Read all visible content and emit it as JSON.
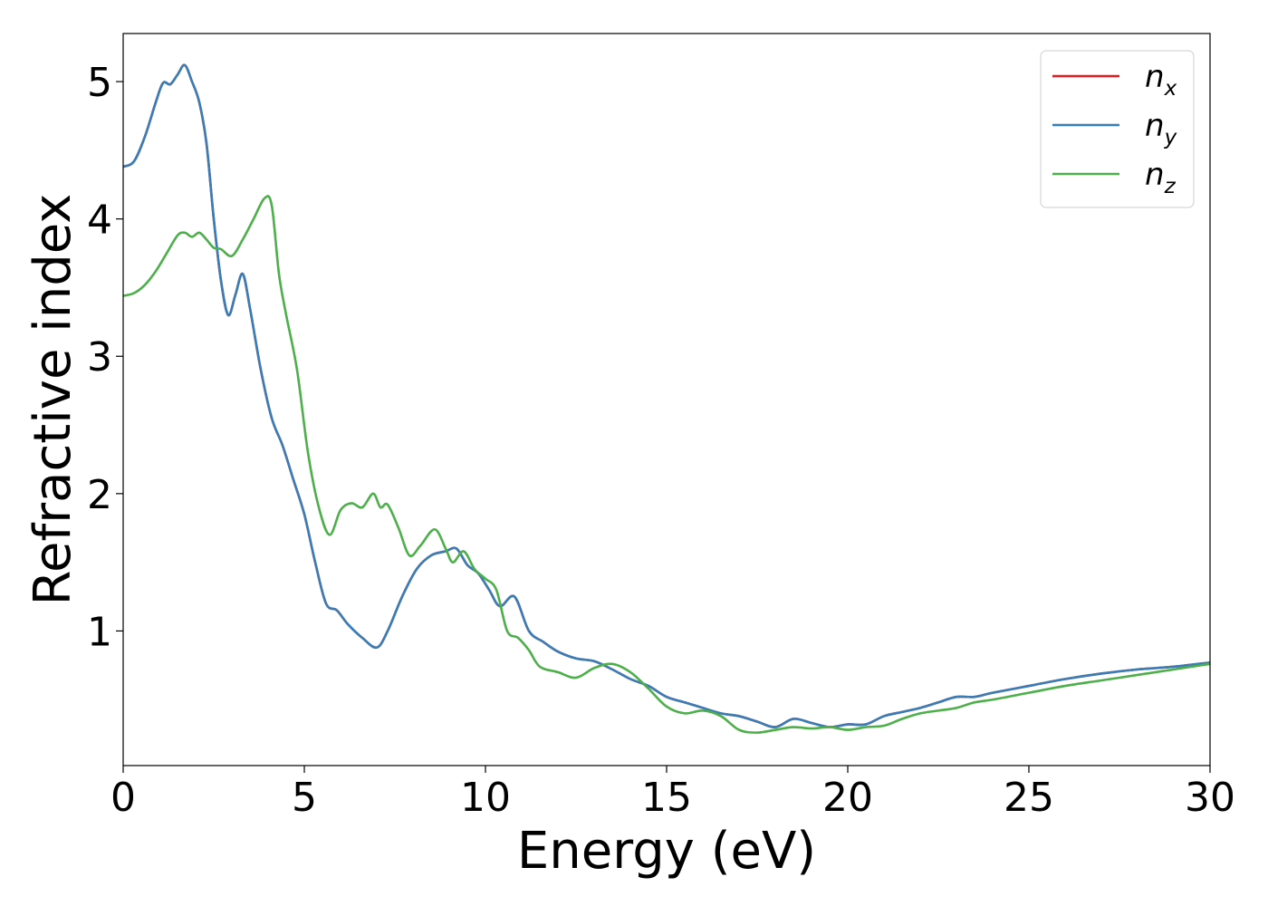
{
  "chart_data": {
    "type": "line",
    "xlabel": "Energy (eV)",
    "ylabel": "Refractive index",
    "xlim": [
      0,
      30
    ],
    "ylim": [
      0.02,
      5.35
    ],
    "xticks": [
      0,
      5,
      10,
      15,
      20,
      25,
      30
    ],
    "yticks": [
      1,
      2,
      3,
      4,
      5
    ],
    "grid": false,
    "legend_position": "top-right",
    "series": [
      {
        "name": "n_x",
        "label_base": "n",
        "label_sub": "x",
        "color": "#e41a1c",
        "x": [
          0,
          0.3,
          0.6,
          0.9,
          1.1,
          1.3,
          1.5,
          1.7,
          1.9,
          2.1,
          2.3,
          2.5,
          2.7,
          2.9,
          3.1,
          3.3,
          3.5,
          3.8,
          4.1,
          4.4,
          4.7,
          5.0,
          5.3,
          5.6,
          5.9,
          6.2,
          6.6,
          7.0,
          7.3,
          7.7,
          8.1,
          8.5,
          8.9,
          9.2,
          9.5,
          9.8,
          10.1,
          10.4,
          10.8,
          11.2,
          11.6,
          12.0,
          12.5,
          13.0,
          13.5,
          14.0,
          14.5,
          15.0,
          15.5,
          16.0,
          16.5,
          17.0,
          17.5,
          18.0,
          18.5,
          19.0,
          19.5,
          20.0,
          20.5,
          21.0,
          21.5,
          22.0,
          22.5,
          23.0,
          23.5,
          24.0,
          25.0,
          26.0,
          27.0,
          28.0,
          29.0,
          30.0
        ],
        "y": [
          4.38,
          4.42,
          4.6,
          4.85,
          4.99,
          4.98,
          5.05,
          5.12,
          5.0,
          4.85,
          4.55,
          4.0,
          3.55,
          3.3,
          3.45,
          3.6,
          3.35,
          2.9,
          2.55,
          2.35,
          2.1,
          1.85,
          1.5,
          1.2,
          1.15,
          1.05,
          0.95,
          0.88,
          1.0,
          1.25,
          1.45,
          1.55,
          1.58,
          1.6,
          1.48,
          1.42,
          1.3,
          1.18,
          1.25,
          1.0,
          0.92,
          0.85,
          0.8,
          0.78,
          0.72,
          0.65,
          0.6,
          0.52,
          0.48,
          0.44,
          0.4,
          0.38,
          0.34,
          0.3,
          0.36,
          0.33,
          0.3,
          0.32,
          0.32,
          0.38,
          0.41,
          0.44,
          0.48,
          0.52,
          0.52,
          0.55,
          0.6,
          0.65,
          0.69,
          0.72,
          0.74,
          0.77
        ]
      },
      {
        "name": "n_y",
        "label_base": "n",
        "label_sub": "y",
        "color": "#377eb8",
        "x": [
          0,
          0.3,
          0.6,
          0.9,
          1.1,
          1.3,
          1.5,
          1.7,
          1.9,
          2.1,
          2.3,
          2.5,
          2.7,
          2.9,
          3.1,
          3.3,
          3.5,
          3.8,
          4.1,
          4.4,
          4.7,
          5.0,
          5.3,
          5.6,
          5.9,
          6.2,
          6.6,
          7.0,
          7.3,
          7.7,
          8.1,
          8.5,
          8.9,
          9.2,
          9.5,
          9.8,
          10.1,
          10.4,
          10.8,
          11.2,
          11.6,
          12.0,
          12.5,
          13.0,
          13.5,
          14.0,
          14.5,
          15.0,
          15.5,
          16.0,
          16.5,
          17.0,
          17.5,
          18.0,
          18.5,
          19.0,
          19.5,
          20.0,
          20.5,
          21.0,
          21.5,
          22.0,
          22.5,
          23.0,
          23.5,
          24.0,
          25.0,
          26.0,
          27.0,
          28.0,
          29.0,
          30.0
        ],
        "y": [
          4.38,
          4.42,
          4.6,
          4.85,
          4.99,
          4.98,
          5.05,
          5.12,
          5.0,
          4.85,
          4.55,
          4.0,
          3.55,
          3.3,
          3.45,
          3.6,
          3.35,
          2.9,
          2.55,
          2.35,
          2.1,
          1.85,
          1.5,
          1.2,
          1.15,
          1.05,
          0.95,
          0.88,
          1.0,
          1.25,
          1.45,
          1.55,
          1.58,
          1.6,
          1.48,
          1.42,
          1.3,
          1.18,
          1.25,
          1.0,
          0.92,
          0.85,
          0.8,
          0.78,
          0.72,
          0.65,
          0.6,
          0.52,
          0.48,
          0.44,
          0.4,
          0.38,
          0.34,
          0.3,
          0.36,
          0.33,
          0.3,
          0.32,
          0.32,
          0.38,
          0.41,
          0.44,
          0.48,
          0.52,
          0.52,
          0.55,
          0.6,
          0.65,
          0.69,
          0.72,
          0.74,
          0.77
        ]
      },
      {
        "name": "n_z",
        "label_base": "n",
        "label_sub": "z",
        "color": "#4daf4a",
        "x": [
          0,
          0.3,
          0.6,
          0.9,
          1.2,
          1.5,
          1.7,
          1.9,
          2.1,
          2.3,
          2.5,
          2.7,
          3.0,
          3.3,
          3.6,
          3.9,
          4.1,
          4.3,
          4.5,
          4.8,
          5.1,
          5.4,
          5.7,
          6.0,
          6.3,
          6.6,
          6.9,
          7.1,
          7.3,
          7.6,
          7.9,
          8.2,
          8.6,
          8.9,
          9.1,
          9.4,
          9.7,
          10.0,
          10.3,
          10.6,
          10.9,
          11.2,
          11.5,
          12.0,
          12.5,
          13.0,
          13.5,
          14.0,
          14.5,
          15.0,
          15.5,
          16.0,
          16.5,
          17.0,
          17.5,
          18.0,
          18.5,
          19.0,
          19.5,
          20.0,
          20.5,
          21.0,
          21.5,
          22.0,
          22.5,
          23.0,
          23.5,
          24.0,
          25.0,
          26.0,
          27.0,
          28.0,
          29.0,
          30.0
        ],
        "y": [
          3.44,
          3.46,
          3.52,
          3.62,
          3.75,
          3.88,
          3.9,
          3.87,
          3.9,
          3.85,
          3.79,
          3.78,
          3.73,
          3.85,
          4.0,
          4.15,
          4.1,
          3.6,
          3.3,
          2.9,
          2.3,
          1.9,
          1.7,
          1.88,
          1.93,
          1.9,
          2.0,
          1.9,
          1.92,
          1.75,
          1.55,
          1.62,
          1.74,
          1.6,
          1.5,
          1.58,
          1.45,
          1.38,
          1.3,
          1.0,
          0.95,
          0.86,
          0.74,
          0.7,
          0.66,
          0.73,
          0.76,
          0.7,
          0.58,
          0.45,
          0.4,
          0.42,
          0.38,
          0.28,
          0.26,
          0.28,
          0.3,
          0.29,
          0.3,
          0.28,
          0.3,
          0.31,
          0.36,
          0.4,
          0.42,
          0.44,
          0.48,
          0.5,
          0.55,
          0.6,
          0.64,
          0.68,
          0.72,
          0.76
        ]
      }
    ]
  }
}
